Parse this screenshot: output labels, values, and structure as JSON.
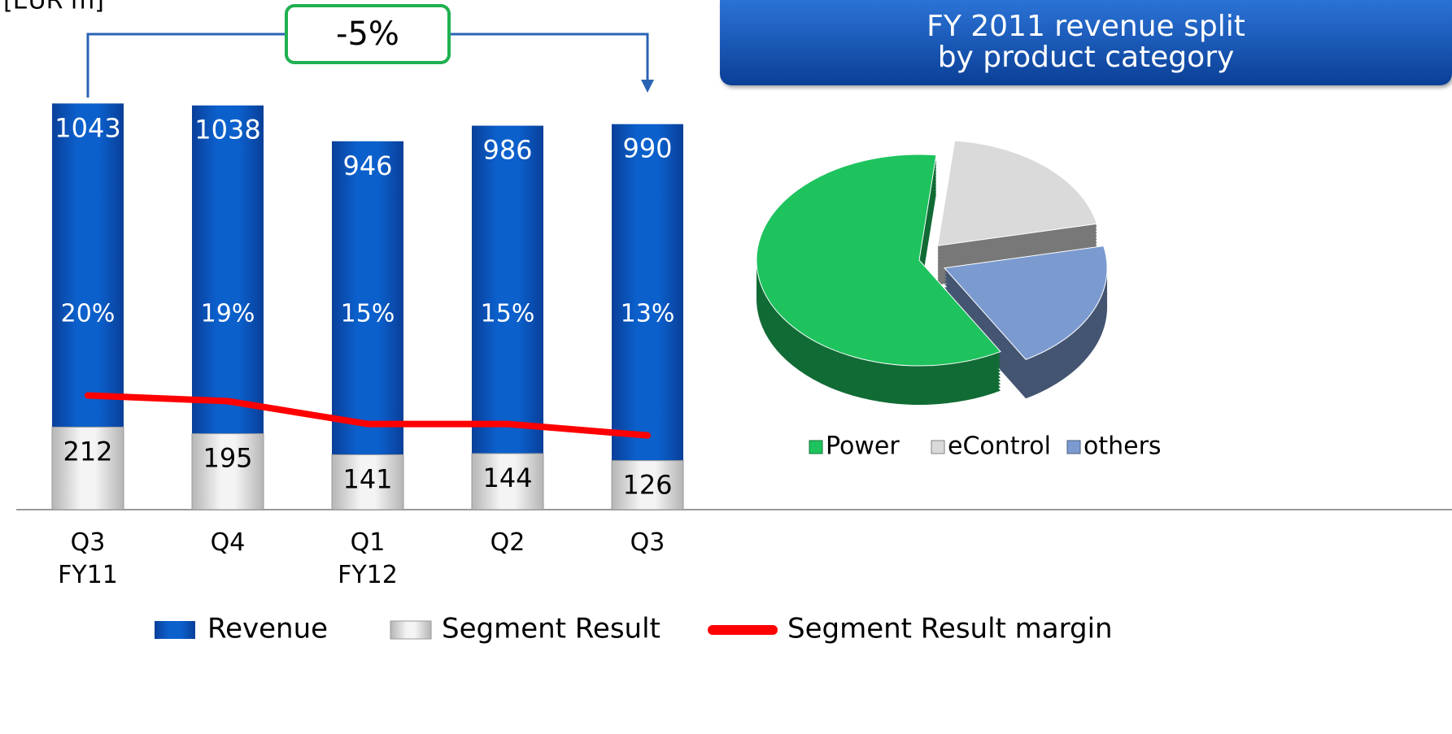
{
  "chart_data": [
    {
      "type": "bar",
      "ylabel": "[EUR m]",
      "annotation": "-5%",
      "categories": [
        "Q3\nFY11",
        "Q4",
        "Q1\nFY12",
        "Q2",
        "Q3"
      ],
      "ylim": [
        0,
        1100
      ],
      "y2lim": [
        0,
        75
      ],
      "series": [
        {
          "name": "Revenue",
          "type": "bar",
          "color": "#0a5cc6",
          "values": [
            1043,
            1038,
            946,
            986,
            990
          ]
        },
        {
          "name": "Segment Result",
          "type": "bar",
          "color": "#d4d4d4",
          "values": [
            212,
            195,
            141,
            144,
            126
          ]
        },
        {
          "name": "Segment Result margin",
          "type": "line",
          "axis": "y2",
          "color": "#ff0000",
          "values": [
            20,
            19,
            15,
            15,
            13
          ],
          "value_labels": [
            "20%",
            "19%",
            "15%",
            "15%",
            "13%"
          ]
        }
      ]
    },
    {
      "type": "pie",
      "title": "FY 2011 revenue split\nby product category",
      "categories": [
        "Power",
        "eControl",
        "others"
      ],
      "values": [
        60,
        20,
        20
      ],
      "colors": [
        "#1ec35e",
        "#dadada",
        "#7b9bd0"
      ]
    }
  ]
}
